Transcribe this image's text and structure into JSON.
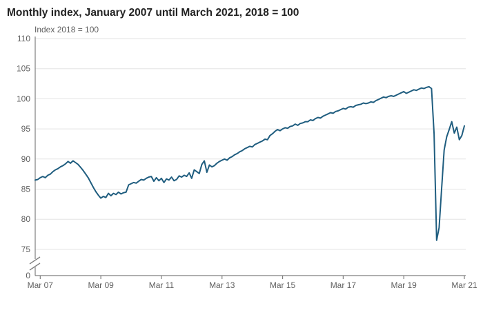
{
  "title": "Monthly index, January 2007 until March 2021, 2018 = 100",
  "chart_data": {
    "type": "line",
    "title": "Monthly index, January 2007 until March 2021, 2018 = 100",
    "ylabel": "Index 2018 = 100",
    "series_name": "Monthly index, 2018 = 100",
    "frequency": "monthly",
    "x_start": "Jan 2007",
    "x_end": "Mar 2021",
    "grid": true,
    "legend": false,
    "y_axis_break": true,
    "y_base_label": "0",
    "ylim_displayed": [
      75,
      110
    ],
    "y_ticks": [
      110,
      105,
      100,
      95,
      90,
      85,
      80,
      75
    ],
    "x_ticks": [
      {
        "label": "Mar 07",
        "index": 2
      },
      {
        "label": "Mar 09",
        "index": 26
      },
      {
        "label": "Mar 11",
        "index": 50
      },
      {
        "label": "Mar 13",
        "index": 74
      },
      {
        "label": "Mar 15",
        "index": 98
      },
      {
        "label": "Mar 17",
        "index": 122
      },
      {
        "label": "Mar 19",
        "index": 146
      },
      {
        "label": "Mar 21",
        "index": 170
      }
    ],
    "values": [
      86.5,
      86.6,
      86.9,
      87.1,
      86.9,
      87.3,
      87.5,
      87.9,
      88.2,
      88.4,
      88.7,
      88.9,
      89.2,
      89.6,
      89.3,
      89.7,
      89.4,
      89.1,
      88.6,
      88.1,
      87.5,
      86.9,
      86.1,
      85.3,
      84.6,
      84.0,
      83.5,
      83.8,
      83.6,
      84.3,
      83.9,
      84.3,
      84.1,
      84.5,
      84.2,
      84.4,
      84.5,
      85.7,
      85.9,
      86.1,
      86.0,
      86.3,
      86.6,
      86.5,
      86.8,
      87.0,
      87.1,
      86.3,
      86.9,
      86.4,
      86.8,
      86.1,
      86.7,
      86.5,
      87.0,
      86.4,
      86.6,
      87.2,
      87.0,
      87.3,
      87.1,
      87.7,
      86.8,
      88.2,
      87.9,
      87.6,
      89.1,
      89.7,
      87.8,
      89.0,
      88.7,
      88.9,
      89.3,
      89.6,
      89.8,
      90.0,
      89.8,
      90.2,
      90.4,
      90.7,
      90.9,
      91.2,
      91.4,
      91.7,
      91.9,
      92.1,
      92.0,
      92.4,
      92.6,
      92.8,
      93.0,
      93.3,
      93.2,
      93.9,
      94.2,
      94.6,
      94.9,
      94.7,
      95.0,
      95.2,
      95.1,
      95.4,
      95.5,
      95.8,
      95.6,
      95.9,
      96.0,
      96.2,
      96.2,
      96.5,
      96.4,
      96.7,
      96.9,
      96.8,
      97.1,
      97.3,
      97.5,
      97.7,
      97.6,
      97.9,
      98.0,
      98.2,
      98.4,
      98.3,
      98.6,
      98.7,
      98.6,
      98.9,
      99.0,
      99.1,
      99.3,
      99.2,
      99.3,
      99.5,
      99.4,
      99.7,
      99.9,
      100.1,
      100.3,
      100.2,
      100.4,
      100.5,
      100.4,
      100.6,
      100.8,
      101.0,
      101.2,
      100.9,
      101.1,
      101.3,
      101.5,
      101.4,
      101.6,
      101.8,
      101.7,
      101.9,
      102.0,
      101.7,
      94.2,
      76.5,
      78.6,
      85.2,
      91.5,
      93.7,
      94.9,
      96.2,
      94.3,
      95.3,
      93.2,
      93.9,
      95.5
    ],
    "line_color": "#1f5d7f",
    "grid_color": "#e3e3e3",
    "axis_color": "#7f7f7f",
    "tick_label_color": "#5f5f5f",
    "title_color": "#222222"
  }
}
